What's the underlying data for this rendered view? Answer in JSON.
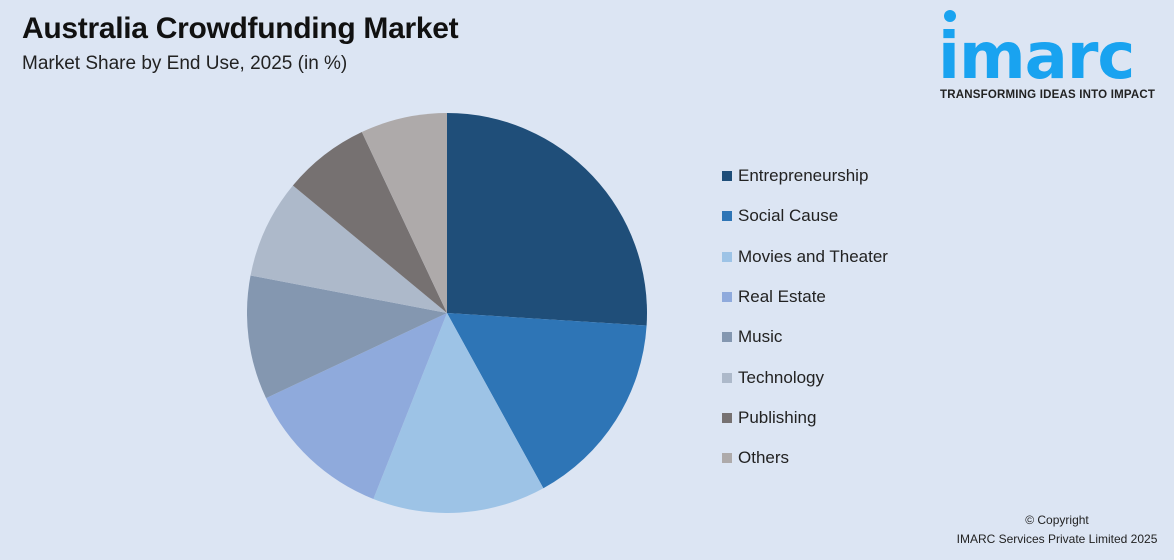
{
  "header": {
    "title": "Australia Crowdfunding Market",
    "subtitle": "Market Share by End Use, 2025 (in %)"
  },
  "logo": {
    "word": "imarc",
    "tagline": "TRANSFORMING IDEAS INTO IMPACT",
    "color": "#19a3f0"
  },
  "footer": {
    "line1": "© Copyright",
    "line2": "IMARC Services Private Limited 2025"
  },
  "chart_data": {
    "type": "pie",
    "title": "Australia Crowdfunding Market",
    "subtitle": "Market Share by End Use, 2025 (in %)",
    "categories": [
      "Entrepreneurship",
      "Social Cause",
      "Movies and Theater",
      "Real Estate",
      "Music",
      "Technology",
      "Publishing",
      "Others"
    ],
    "values": [
      26,
      16,
      14,
      12,
      10,
      8,
      7,
      7
    ],
    "colors": [
      "#1f4e79",
      "#2e75b6",
      "#9dc3e6",
      "#8faadc",
      "#8497b0",
      "#adb9ca",
      "#767171",
      "#aeaaaa"
    ],
    "start_angle": "12 o'clock, clockwise",
    "legend_position": "right",
    "data_labels": false
  }
}
